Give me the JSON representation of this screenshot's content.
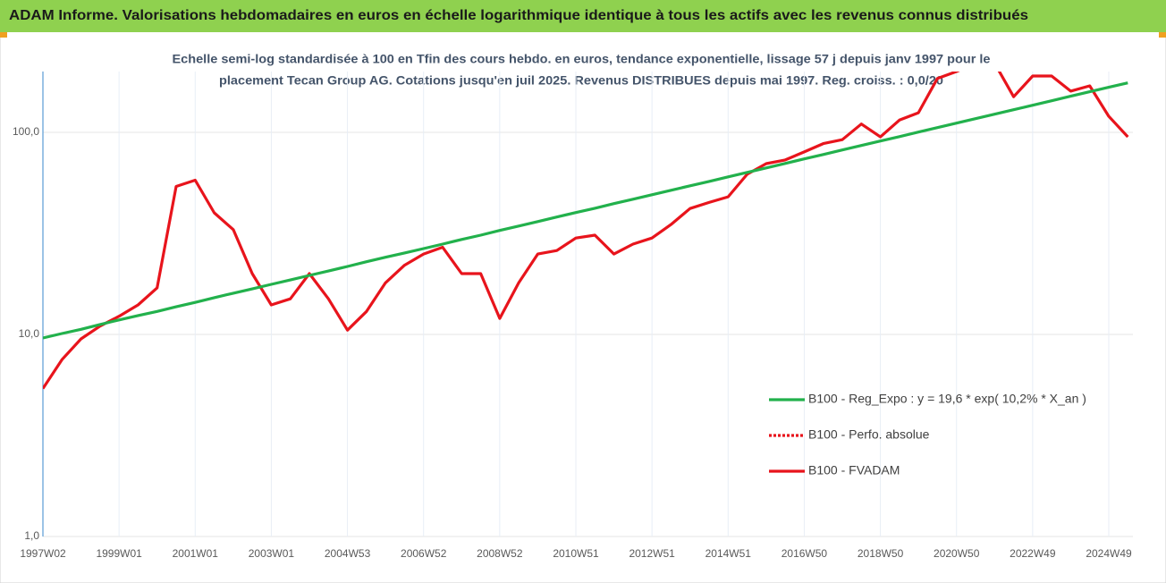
{
  "chart_data": {
    "type": "line",
    "title": "ADAM Informe. Valorisations hebdomadaires en euros en échelle logarithmique identique à tous les actifs avec les revenus connus distribués",
    "subtitle": [
      "Echelle semi-log standardisée à 100 en Tfin des cours hebdo. en euros, tendance exponentielle, lissage 57 j depuis janv 1997 pour le",
      "placement Tecan Group AG. Cotations jusqu'en juil 2025. Revenus DISTRIBUES depuis mai 1997. Reg. croiss. : 0,0/20"
    ],
    "categories": [
      "1997W02",
      null,
      null,
      null,
      "1999W01",
      null,
      null,
      null,
      "2001W01",
      null,
      null,
      null,
      "2003W01",
      null,
      null,
      null,
      "2004W53",
      null,
      null,
      null,
      "2006W52",
      null,
      null,
      null,
      "2008W52",
      null,
      null,
      null,
      "2010W51",
      null,
      null,
      null,
      "2012W51",
      null,
      null,
      null,
      "2014W51",
      null,
      null,
      null,
      "2016W50",
      null,
      null,
      null,
      "2018W50",
      null,
      null,
      null,
      "2020W50",
      null,
      null,
      null,
      "2022W49",
      null,
      null,
      null,
      "2024W49",
      null
    ],
    "series": [
      {
        "name": "B100 - Reg_Expo : y = 19,6 * exp( 10,2% *  X_an )",
        "color": "#22b14c",
        "style": "solid",
        "values": [
          9.6,
          10.1,
          10.6,
          11.2,
          11.8,
          12.4,
          13.0,
          13.7,
          14.4,
          15.2,
          16.0,
          16.8,
          17.7,
          18.6,
          19.6,
          20.6,
          21.7,
          22.9,
          24.1,
          25.3,
          26.6,
          28.0,
          29.5,
          31.0,
          32.7,
          34.4,
          36.2,
          38.1,
          40.1,
          42.1,
          44.4,
          46.7,
          49.1,
          51.7,
          54.4,
          57.2,
          60.2,
          63.4,
          66.7,
          70.2,
          73.9,
          77.7,
          81.8,
          86.1,
          90.6,
          95.3,
          100.3,
          105.6,
          111.1,
          116.9,
          123.0,
          129.4,
          136.2,
          143.3,
          150.9,
          158.8,
          167.1,
          175.8
        ]
      },
      {
        "name": "B100 - Perfo. absolue",
        "color": "#e8141c",
        "style": "dotted",
        "values": [
          5.4,
          7.5,
          9.5,
          11,
          12.3,
          14,
          17,
          54,
          58,
          40,
          33,
          20,
          14,
          15,
          20,
          15,
          10.5,
          13,
          18,
          22,
          25,
          27,
          20,
          20,
          12,
          18,
          25,
          26,
          30,
          31,
          25,
          28,
          30,
          35,
          42,
          45,
          48,
          62,
          70,
          73,
          80,
          88,
          92,
          110,
          95,
          115,
          125,
          185,
          200,
          220,
          220,
          150,
          190,
          190,
          160,
          170,
          120,
          95
        ]
      },
      {
        "name": "B100 - FVADAM",
        "color": "#e8141c",
        "style": "solid",
        "values": [
          5.4,
          7.5,
          9.5,
          11,
          12.3,
          14,
          17,
          54,
          58,
          40,
          33,
          20,
          14,
          15,
          20,
          15,
          10.5,
          13,
          18,
          22,
          25,
          27,
          20,
          20,
          12,
          18,
          25,
          26,
          30,
          31,
          25,
          28,
          30,
          35,
          42,
          45,
          48,
          62,
          70,
          73,
          80,
          88,
          92,
          110,
          95,
          115,
          125,
          185,
          200,
          220,
          220,
          150,
          190,
          190,
          160,
          170,
          120,
          95
        ]
      }
    ],
    "log_scale": true,
    "ylim": [
      1,
      200
    ],
    "yticks": [
      {
        "value": 1,
        "label": "1,0"
      },
      {
        "value": 10,
        "label": "10,0"
      },
      {
        "value": 100,
        "label": "100,0"
      }
    ],
    "grid": true
  }
}
